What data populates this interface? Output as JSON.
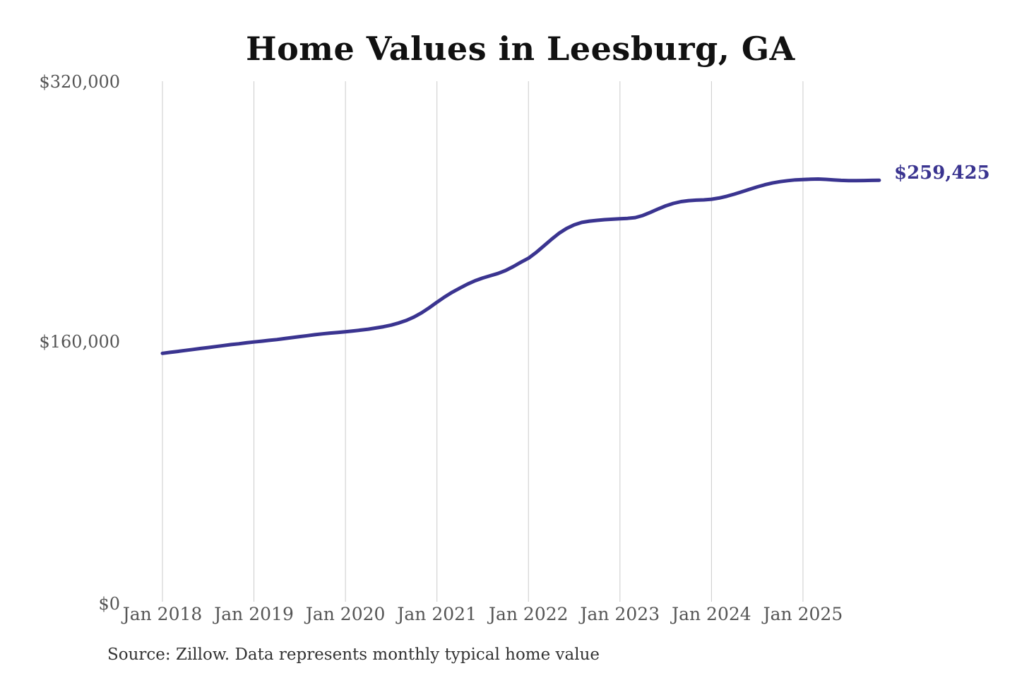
{
  "title": "Home Values in Leesburg, GA",
  "source_note": "Source: Zillow. Data represents monthly typical home value",
  "colors": {
    "line": "#3a3490",
    "latest_label": "#3a3490",
    "grid": "#cbcbcb",
    "axis_text": "#555555",
    "title_text": "#111111",
    "source_text": "#333333",
    "background": "#ffffff"
  },
  "chart_data": {
    "type": "line",
    "title": "Home Values in Leesburg, GA",
    "xlabel": "",
    "ylabel": "",
    "x_interval": "monthly",
    "x_start": "Jan 2018",
    "x_end": "Nov 2025",
    "x_tick_labels": [
      "Jan 2018",
      "Jan 2019",
      "Jan 2020",
      "Jan 2021",
      "Jan 2022",
      "Jan 2023",
      "Jan 2024",
      "Jan 2025"
    ],
    "y_ticks": [
      0,
      160000,
      320000
    ],
    "y_tick_labels": [
      "$0",
      "$160,000",
      "$320,000"
    ],
    "ylim": [
      0,
      320000
    ],
    "grid": "vertical-yearly-only",
    "legend_position": "none",
    "latest_value": 259425,
    "latest_value_label": "$259,425",
    "series": [
      {
        "name": "Monthly typical home value",
        "unit": "USD",
        "values": [
          152900,
          153500,
          154100,
          154700,
          155300,
          155900,
          156500,
          157100,
          157700,
          158300,
          158800,
          159400,
          159900,
          160400,
          160900,
          161400,
          162000,
          162600,
          163200,
          163800,
          164400,
          164900,
          165400,
          165800,
          166200,
          166700,
          167200,
          167800,
          168500,
          169300,
          170300,
          171600,
          173200,
          175300,
          177900,
          181000,
          184400,
          187600,
          190500,
          193100,
          195500,
          197600,
          199300,
          200700,
          202100,
          203900,
          206300,
          209000,
          211500,
          215000,
          219000,
          223000,
          226800,
          229800,
          232000,
          233500,
          234300,
          234800,
          235200,
          235500,
          235800,
          236000,
          236500,
          237800,
          239700,
          241800,
          243700,
          245200,
          246300,
          246900,
          247200,
          247400,
          247800,
          248500,
          249600,
          250900,
          252400,
          253900,
          255400,
          256700,
          257800,
          258600,
          259200,
          259700,
          259900,
          260100,
          260200,
          260000,
          259700,
          259400,
          259200,
          259200,
          259300,
          259400,
          259425
        ]
      }
    ]
  }
}
